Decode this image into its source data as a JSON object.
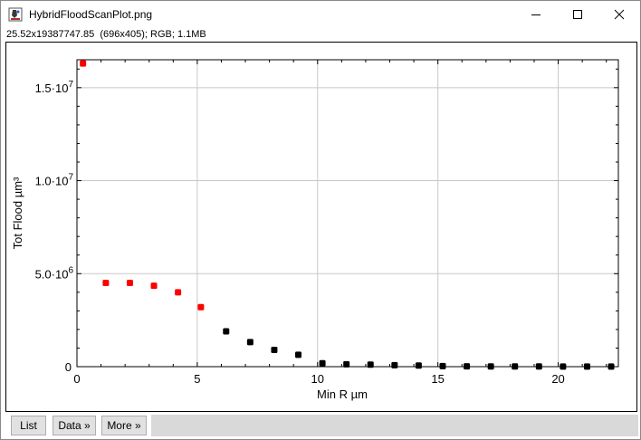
{
  "window": {
    "title": "HybridFloodScanPlot.png",
    "info": "25.52x19387747.85  (696x405); RGB; 1.1MB"
  },
  "toolbar": {
    "list_label": "List",
    "data_label": "Data »",
    "more_label": "More »"
  },
  "icons": {
    "app": "imagej-microscope-icon",
    "minimize": "minimize-icon",
    "maximize": "maximize-icon",
    "close": "close-icon"
  },
  "colors": {
    "red_series": "#ff0000",
    "black_series": "#000000",
    "grid": "#c8c8c8"
  },
  "chart_data": {
    "type": "scatter",
    "title": "",
    "xlabel": "Min R µm",
    "ylabel": "Tot Flood µm³",
    "xlim": [
      0,
      22.5
    ],
    "ylim": [
      0,
      16500000
    ],
    "grid": true,
    "x_ticks": [
      {
        "value": 0,
        "label": "0"
      },
      {
        "value": 5,
        "label": "5"
      },
      {
        "value": 10,
        "label": "10"
      },
      {
        "value": 15,
        "label": "15"
      },
      {
        "value": 20,
        "label": "20"
      }
    ],
    "y_ticks": [
      {
        "value": 0,
        "mantissa": "0",
        "exponent": ""
      },
      {
        "value": 5000000,
        "mantissa": "5.0·10",
        "exponent": "6"
      },
      {
        "value": 10000000,
        "mantissa": "1.0·10",
        "exponent": "7"
      },
      {
        "value": 15000000,
        "mantissa": "1.5·10",
        "exponent": "7"
      }
    ],
    "series": [
      {
        "color": "#ff0000",
        "points": [
          [
            0.25,
            16300000
          ],
          [
            1.2,
            4500000
          ],
          [
            2.2,
            4500000
          ],
          [
            3.2,
            4350000
          ],
          [
            4.2,
            4000000
          ],
          [
            5.15,
            3200000
          ]
        ]
      },
      {
        "color": "#000000",
        "points": [
          [
            6.2,
            1900000
          ],
          [
            7.2,
            1320000
          ],
          [
            8.2,
            900000
          ],
          [
            9.2,
            640000
          ],
          [
            10.2,
            180000
          ],
          [
            11.2,
            130000
          ],
          [
            12.2,
            110000
          ],
          [
            13.2,
            80000
          ],
          [
            14.2,
            60000
          ],
          [
            15.2,
            30000
          ],
          [
            16.2,
            20000
          ],
          [
            17.2,
            15000
          ],
          [
            18.2,
            12000
          ],
          [
            19.2,
            10000
          ],
          [
            20.2,
            8000
          ],
          [
            21.2,
            6000
          ],
          [
            22.2,
            5000
          ]
        ]
      }
    ]
  }
}
